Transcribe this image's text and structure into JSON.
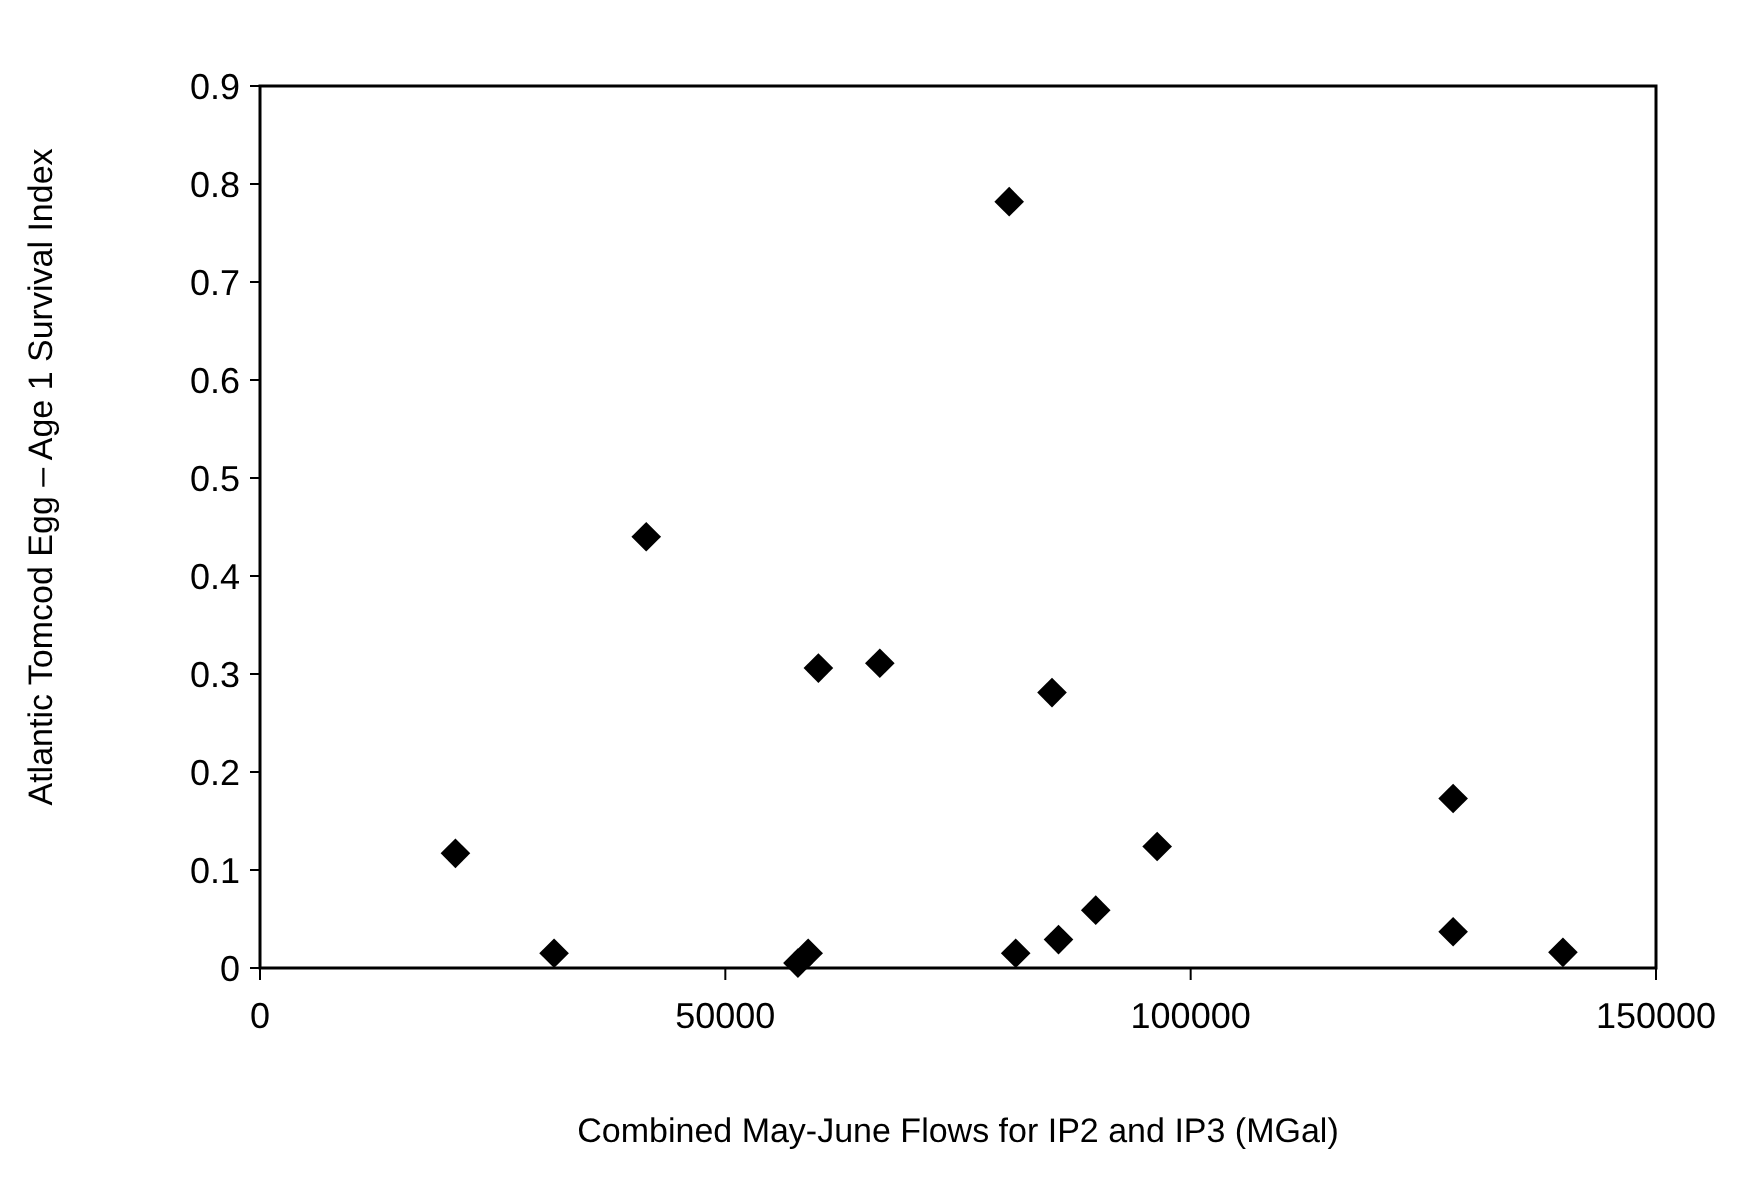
{
  "chart_data": {
    "type": "scatter",
    "xlabel": "Combined May-June Flows for IP2 and IP3 (MGal)",
    "ylabel": "Atlantic Tomcod Egg – Age 1 Survival Index",
    "x": [
      21000,
      31600,
      41500,
      57800,
      58900,
      60000,
      66600,
      80500,
      81200,
      85100,
      85800,
      89800,
      96400,
      128200,
      128200,
      140000
    ],
    "series": [
      {
        "color": "#000000",
        "values": [
          0.117,
          0.015,
          0.44,
          0.005,
          0.015,
          0.306,
          0.311,
          0.782,
          0.015,
          0.281,
          0.029,
          0.059,
          0.124,
          0.173,
          0.037,
          0.016
        ]
      }
    ],
    "xlim": [
      0,
      150000
    ],
    "xticks": [
      0,
      50000,
      100000,
      150000
    ],
    "ylim": [
      0,
      0.9
    ],
    "yticks": [
      0,
      0.1,
      0.2,
      0.3,
      0.4,
      0.5,
      0.6,
      0.7,
      0.8,
      0.9
    ],
    "marker": "diamond",
    "grid": false
  }
}
